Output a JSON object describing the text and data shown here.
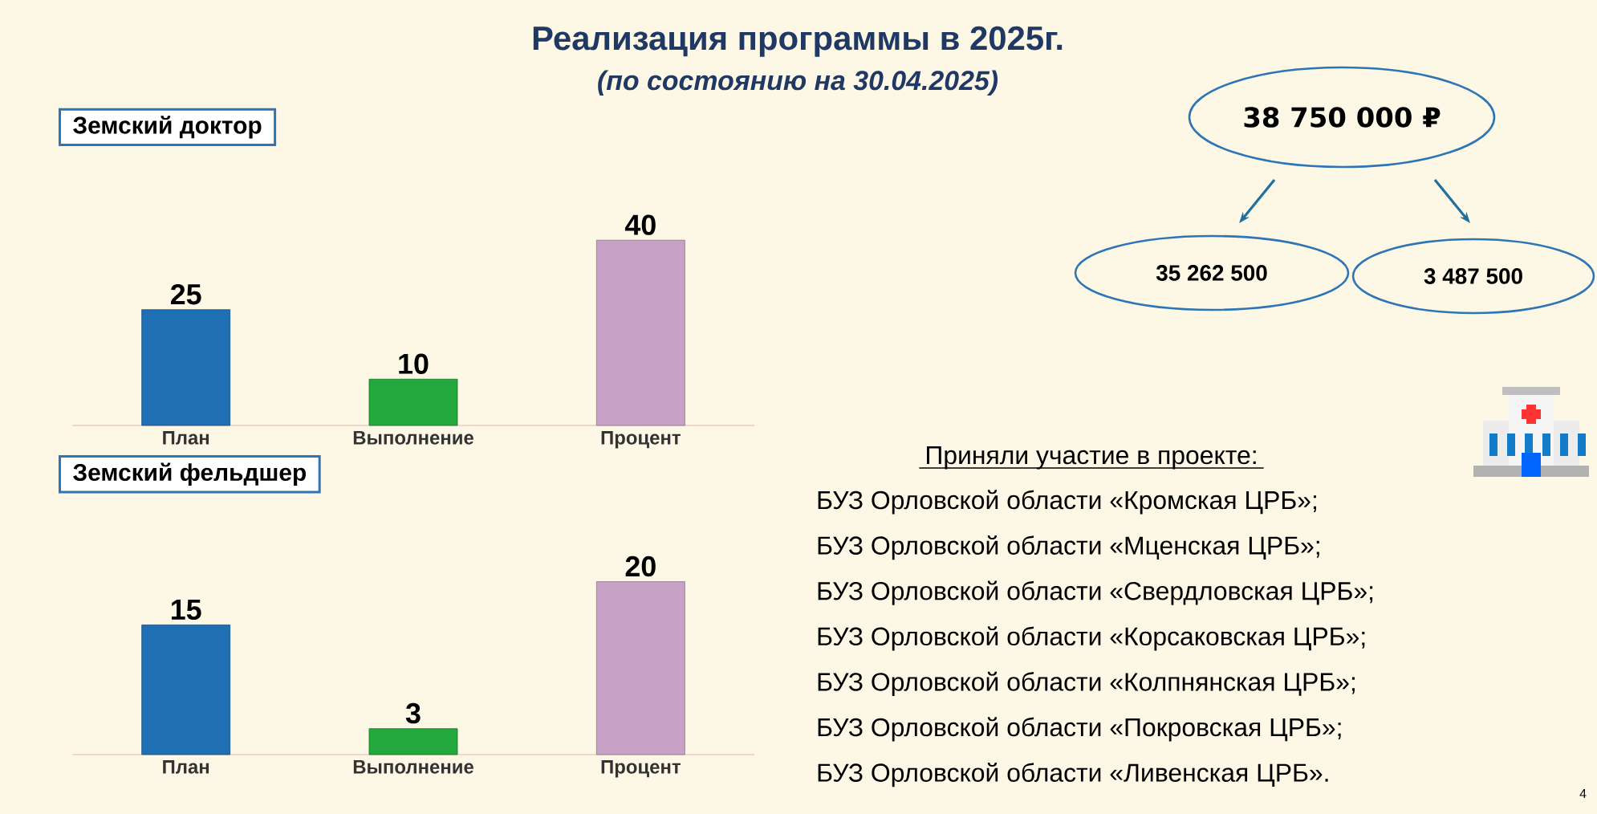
{
  "chart_data": [
    {
      "type": "bar",
      "title": "Земский доктор",
      "categories": [
        "План",
        "Выполнение",
        "Процент"
      ],
      "values": [
        25,
        10,
        40
      ],
      "colors": [
        "#1f6fb5",
        "#22a83c",
        "#c8a2c6"
      ],
      "data_labels": true
    },
    {
      "type": "bar",
      "title": "Земский фельдшер",
      "categories": [
        "План",
        "Выполнение",
        "Процент"
      ],
      "values": [
        15,
        3,
        20
      ],
      "colors": [
        "#1f6fb5",
        "#22a83c",
        "#c8a2c6"
      ],
      "data_labels": true
    },
    {
      "type": "other",
      "title": "Реализация программы в 2025г.",
      "subtitle": "(по состоянию на 30.04.2025)",
      "annotations": [
        "38 750 000 ₽",
        "35 262 500",
        "3 487 500",
        "Приняли участие в проекте:",
        "БУЗ Орловской области «Кромская ЦРБ»;",
        "БУЗ Орловской области «Мценская ЦРБ»;",
        "БУЗ Орловской области «Свердловская ЦРБ»;",
        "БУЗ Орловской области «Корсаковская ЦРБ»;",
        "БУЗ Орловской области «Колпнянская ЦРБ»;",
        "БУЗ Орловской области «Покровская ЦРБ»;",
        "БУЗ Орловской области «Ливенская ЦРБ».",
        "4"
      ]
    }
  ]
}
